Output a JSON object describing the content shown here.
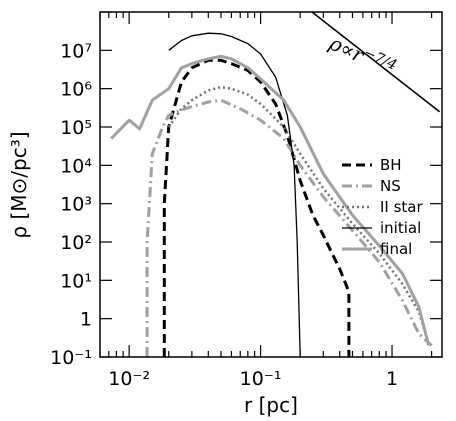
{
  "chart_data": {
    "type": "line",
    "xlabel": "r [pc]",
    "ylabel": "ρ  [M⊙/pc³]",
    "xscale": "log",
    "yscale": "log",
    "xlim": [
      0.006,
      2.4
    ],
    "ylim": [
      0.1,
      100000000
    ],
    "x_ticks": [
      {
        "value": 0.01,
        "label": "10⁻²"
      },
      {
        "value": 0.1,
        "label": "10⁻¹"
      },
      {
        "value": 1,
        "label": "1"
      }
    ],
    "y_ticks": [
      {
        "value": 0.1,
        "label": "10⁻¹"
      },
      {
        "value": 1,
        "label": "1"
      },
      {
        "value": 10,
        "label": "10¹"
      },
      {
        "value": 100,
        "label": "10²"
      },
      {
        "value": 1000,
        "label": "10³"
      },
      {
        "value": 10000,
        "label": "10⁴"
      },
      {
        "value": 100000,
        "label": "10⁵"
      },
      {
        "value": 1000000,
        "label": "10⁶"
      },
      {
        "value": 10000000,
        "label": "10⁷"
      }
    ],
    "legend_position": "right",
    "series": [
      {
        "name": "BH",
        "color": "#000000",
        "dash": "dashed",
        "width": 3,
        "x": [
          0.0185,
          0.0185,
          0.02,
          0.025,
          0.03,
          0.04,
          0.05,
          0.06,
          0.08,
          0.1,
          0.13,
          0.16,
          0.2,
          0.25,
          0.3,
          0.35,
          0.4,
          0.47,
          0.47
        ],
        "y": [
          0.1,
          1000,
          100000,
          1500000,
          3500000,
          5500000,
          5500000,
          4500000,
          3000000,
          1500000,
          400000,
          60000,
          4000,
          500,
          150,
          50,
          20,
          5,
          0.1
        ]
      },
      {
        "name": "NS",
        "color": "#a0a0a0",
        "dash": "dashdot",
        "width": 3,
        "x": [
          0.0137,
          0.0137,
          0.015,
          0.018,
          0.02,
          0.025,
          0.03,
          0.04,
          0.05,
          0.07,
          0.1,
          0.15,
          0.2,
          0.3,
          0.5,
          0.8,
          1.2,
          1.6,
          2.0
        ],
        "y": [
          0.1,
          100,
          20000,
          100000,
          200000,
          280000,
          340000,
          450000,
          500000,
          300000,
          150000,
          50000,
          10000,
          1500,
          200,
          30,
          3,
          0.4,
          0.2
        ]
      },
      {
        "name": "II star",
        "color": "#707070",
        "dash": "dotted",
        "width": 2.5,
        "x": [
          0.02,
          0.025,
          0.03,
          0.04,
          0.05,
          0.06,
          0.08,
          0.1,
          0.15,
          0.2,
          0.3,
          0.5,
          0.8,
          1.2,
          1.6,
          1.85
        ],
        "y": [
          100000,
          300000,
          500000,
          900000,
          1100000,
          1000000,
          700000,
          400000,
          100000,
          20000,
          2500,
          300,
          50,
          8,
          1.5,
          0.3
        ]
      },
      {
        "name": "initial",
        "color": "#000000",
        "dash": "solid",
        "width": 1.3,
        "x": [
          0.02,
          0.025,
          0.03,
          0.04,
          0.05,
          0.06,
          0.08,
          0.1,
          0.13,
          0.16,
          0.18,
          0.19,
          0.2
        ],
        "y": [
          10000000,
          18000000,
          24000000,
          28000000,
          27000000,
          23000000,
          15000000,
          8000000,
          2000000,
          200000,
          10000,
          100,
          0.1
        ]
      },
      {
        "name": "final",
        "color": "#a0a0a0",
        "dash": "solid",
        "width": 3,
        "x": [
          0.0073,
          0.01,
          0.012,
          0.015,
          0.02,
          0.025,
          0.03,
          0.04,
          0.05,
          0.06,
          0.08,
          0.1,
          0.15,
          0.2,
          0.3,
          0.5,
          0.8,
          1.2,
          1.6,
          1.9
        ],
        "y": [
          50000,
          150000,
          90000,
          500000,
          1000000,
          3500000,
          4500000,
          6000000,
          7000000,
          6000000,
          3500000,
          1800000,
          500000,
          100000,
          6000,
          500,
          80,
          15,
          2,
          0.2
        ]
      }
    ],
    "annotation": {
      "text": "ρ∝r",
      "superscript": "−7/4",
      "x1": 0.19,
      "y1": 200000000,
      "x2": 2.3,
      "y2": 250000
    }
  }
}
